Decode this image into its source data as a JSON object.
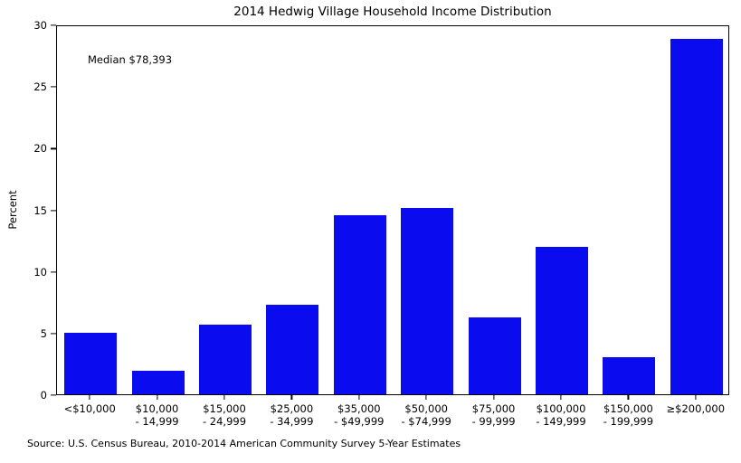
{
  "chart_data": {
    "type": "bar",
    "title": "2014 Hedwig Village Household Income Distribution",
    "xlabel": "",
    "ylabel": "Percent",
    "ylim": [
      0,
      30
    ],
    "yticks": [
      0,
      5,
      10,
      15,
      20,
      25,
      30
    ],
    "grid": false,
    "legend": null,
    "bar_color": "#0b0bf0",
    "annotation": "Median $78,393",
    "source": "Source: U.S. Census Bureau, 2010-2014 American Community Survey 5-Year Estimates",
    "categories": [
      [
        "<$10,000"
      ],
      [
        "$10,000",
        "- 14,999"
      ],
      [
        "$15,000",
        "- 24,999"
      ],
      [
        "$25,000",
        "- 34,999"
      ],
      [
        "$35,000",
        "- $49,999"
      ],
      [
        "$50,000",
        "- $74,999"
      ],
      [
        "$75,000",
        "- 99,999"
      ],
      [
        "$100,000",
        "- 149,999"
      ],
      [
        "$150,000",
        "- 199,999"
      ],
      [
        "≥$200,000"
      ]
    ],
    "values": [
      5.0,
      1.9,
      5.7,
      7.3,
      14.6,
      15.2,
      6.3,
      12.0,
      3.0,
      29.0
    ]
  }
}
